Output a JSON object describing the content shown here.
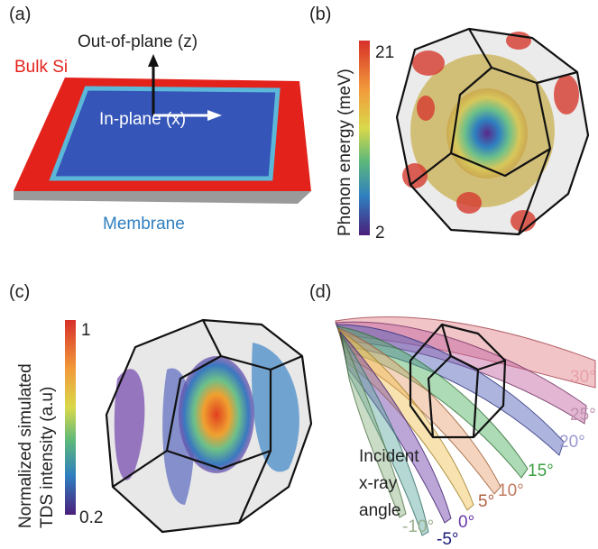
{
  "panel_a": {
    "label": "(a)",
    "z_axis": "Out-of-plane (z)",
    "x_axis": "In-plane (x)",
    "bulk": "Bulk Si",
    "membrane": "Membrane"
  },
  "panel_b": {
    "label": "(b)",
    "colorbar_title": "Phonon energy (meV)",
    "colorbar_max": 21,
    "colorbar_min": 2
  },
  "panel_c": {
    "label": "(c)",
    "colorbar_title": [
      "Normalized simulated",
      "TDS intensity (a.u)"
    ],
    "colorbar_max": 1,
    "colorbar_min": 0.2
  },
  "panel_d": {
    "label": "(d)",
    "legend_title": [
      "Incident",
      "x-ray",
      "angle"
    ],
    "angles": [
      "30°",
      "25°",
      "20°",
      "15°",
      "10°",
      "5°",
      "0°",
      "-5°",
      "-10°"
    ]
  }
}
